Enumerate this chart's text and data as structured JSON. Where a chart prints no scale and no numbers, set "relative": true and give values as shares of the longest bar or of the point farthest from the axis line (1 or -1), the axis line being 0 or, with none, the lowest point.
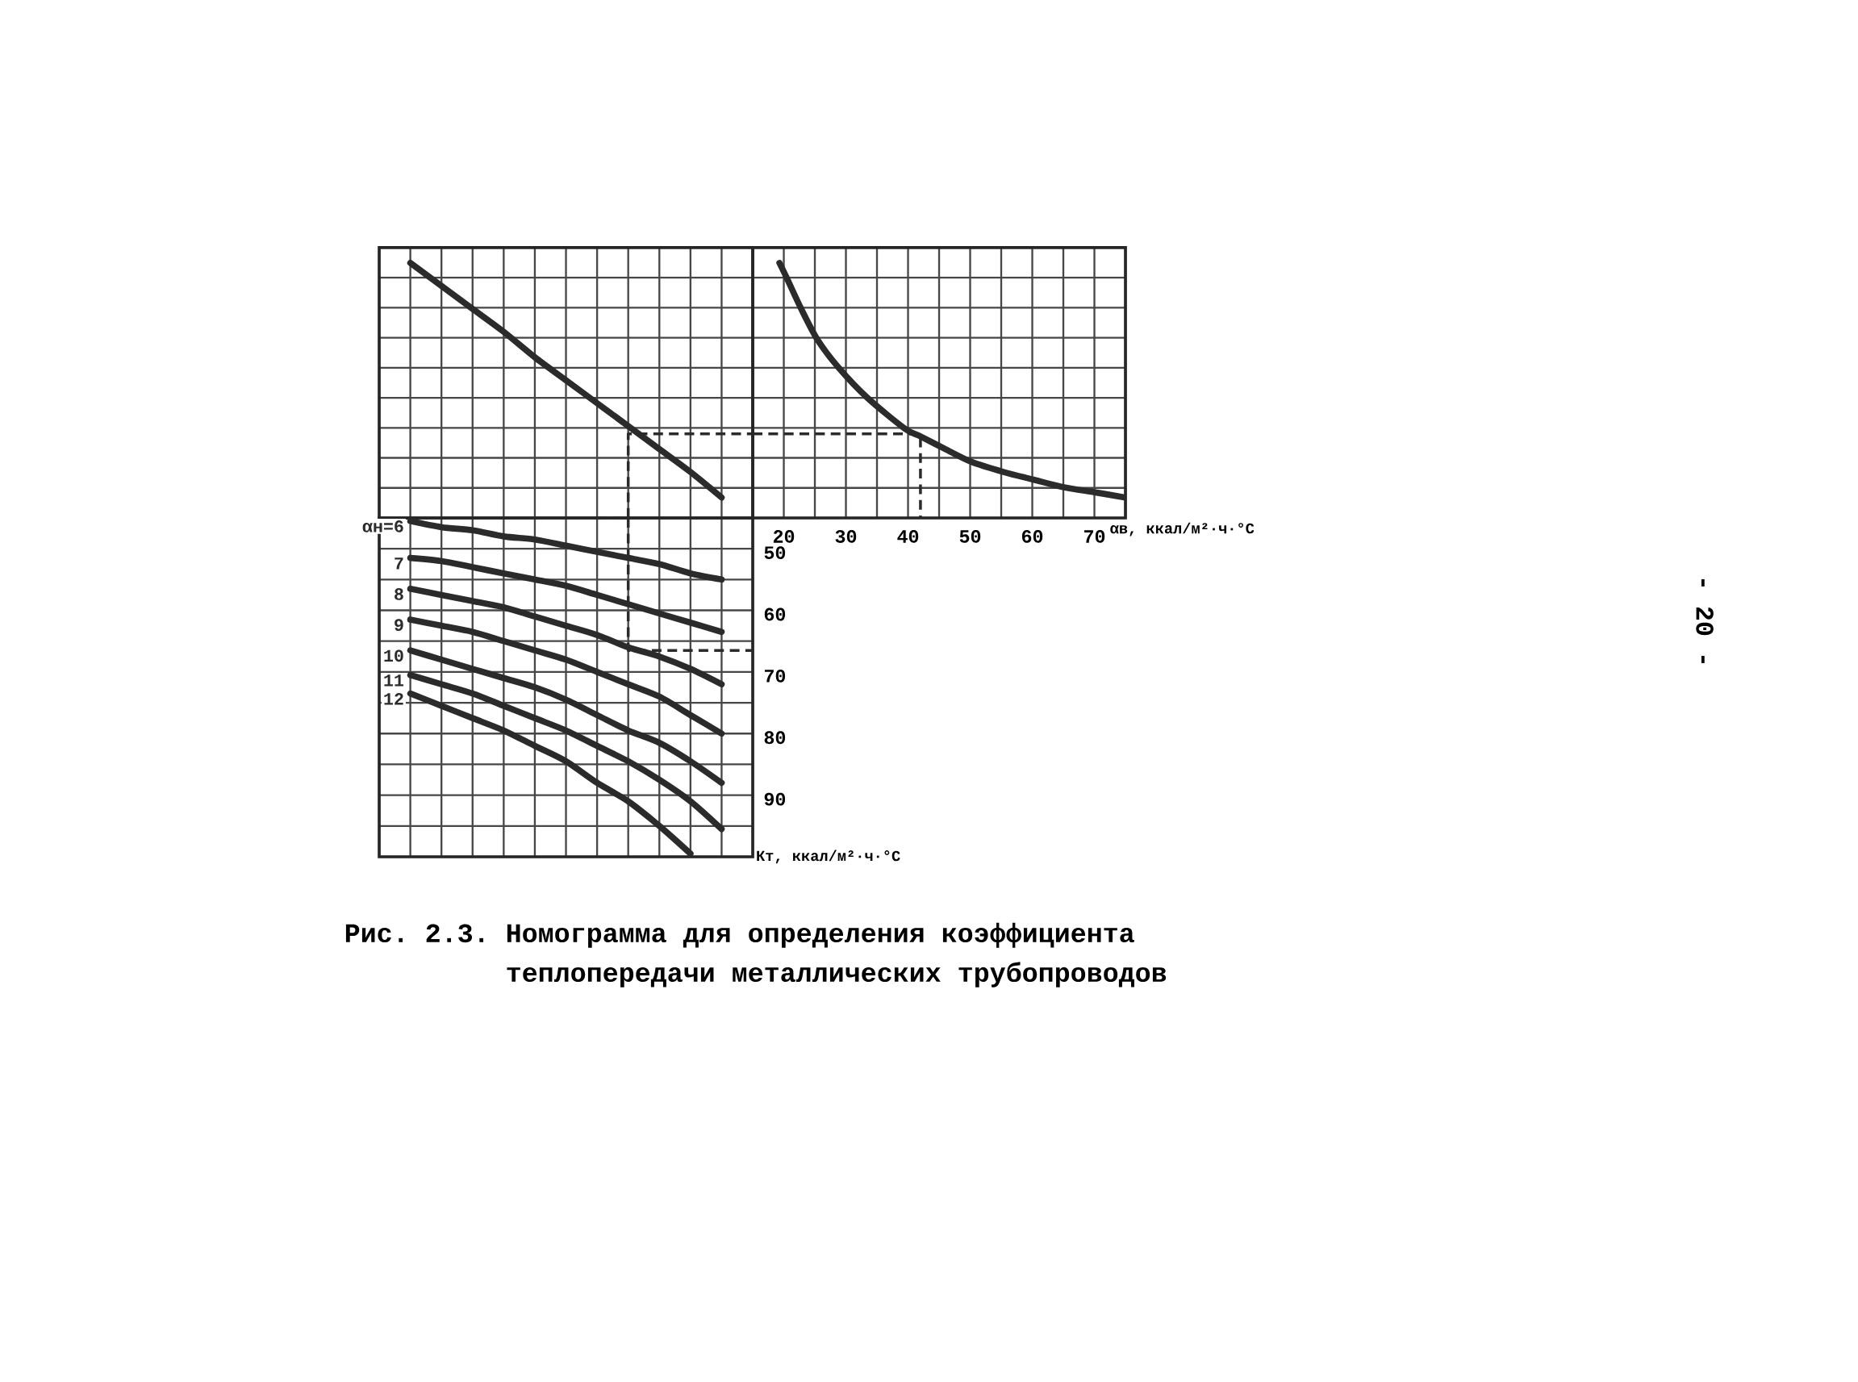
{
  "chart_data": [
    {
      "type": "line",
      "relative": true,
      "grid": true,
      "tick_labels": false,
      "title": "Рис. 2.3. Номограмма для определения коэффициента теплопередачи металлических трубопроводов",
      "annotations": [
        "- 20 -"
      ],
      "categories": [
        null,
        null,
        null,
        null,
        null,
        null,
        null,
        null,
        null,
        null,
        null,
        null,
        null
      ],
      "series": [
        {
          "color": "#2b2b2b",
          "values": [
            null,
            1,
            0.91,
            0.82,
            0.73,
            0.63,
            0.54,
            0.45,
            0.36,
            0.27,
            0.18,
            0.08,
            null
          ]
        },
        {
          "type": "step",
          "line_style": "dashed",
          "color": "#2b2b2b",
          "values": [
            null,
            null,
            null,
            null,
            null,
            null,
            null,
            0,
            0.33,
            0.33,
            0.33,
            0.33,
            0.33
          ]
        }
      ]
    },
    {
      "type": "line",
      "relative": true,
      "grid": true,
      "tick_labels": "x",
      "xlabel": "αв, ккал/м²·ч·°C",
      "xlim": [
        15,
        75
      ],
      "xticks": [
        {
          "value": 15,
          "label": null
        },
        20,
        {
          "value": 25,
          "label": null
        },
        30,
        {
          "value": 35,
          "label": null
        },
        40,
        {
          "value": 45,
          "label": null
        },
        50,
        {
          "value": 55,
          "label": null
        },
        60,
        {
          "value": 65,
          "label": null
        },
        70,
        {
          "value": 75,
          "label": null
        }
      ],
      "series": [
        {
          "color": "#2b2b2b",
          "x": [
            19.3,
            20.5,
            22.8,
            25.4,
            28.8,
            33.5,
            39.5,
            42,
            46,
            50.2,
            55.4,
            60.2,
            65.1,
            70.2,
            75
          ],
          "values": [
            1,
            0.94,
            0.82,
            0.7,
            0.59,
            0.47,
            0.35,
            0.32,
            0.27,
            0.22,
            0.18,
            0.15,
            0.12,
            0.1,
            0.08
          ]
        },
        {
          "type": "step",
          "line_style": "dashed",
          "color": "#2b2b2b",
          "x": [
            15,
            42
          ],
          "values": [
            0.33,
            0
          ]
        }
      ]
    },
    {
      "type": "line",
      "grid": true,
      "tick_labels": "y",
      "ylabel": "Кт, ккал/м²·ч·°C",
      "ylim": [
        100,
        45
      ],
      "yticks": [
        {
          "value": 45,
          "label": null
        },
        50,
        {
          "value": 55,
          "label": null
        },
        60,
        {
          "value": 65,
          "label": null
        },
        70,
        {
          "value": 75,
          "label": null
        },
        80,
        {
          "value": 85,
          "label": null
        },
        90,
        {
          "value": 95,
          "label": null
        },
        {
          "value": 100,
          "label": null
        }
      ],
      "categories": [
        null,
        null,
        null,
        null,
        null,
        null,
        null,
        null,
        null,
        null,
        null,
        null,
        null
      ],
      "series": [
        {
          "name": "αн=6",
          "color": "#2b2b2b",
          "values": [
            null,
            45.5,
            46.5,
            47,
            48,
            48.5,
            49.5,
            50.5,
            51.5,
            52.5,
            54,
            55,
            null
          ]
        },
        {
          "name": "7",
          "color": "#2b2b2b",
          "values": [
            null,
            51.5,
            52,
            53,
            54,
            55,
            56,
            57.5,
            59,
            60.5,
            62,
            63.5,
            null
          ]
        },
        {
          "name": "8",
          "color": "#2b2b2b",
          "values": [
            null,
            56.5,
            57.5,
            58.5,
            59.5,
            61,
            62.5,
            64,
            66,
            67.5,
            69.5,
            72,
            null
          ]
        },
        {
          "name": "9",
          "color": "#2b2b2b",
          "values": [
            null,
            61.5,
            62.5,
            63.5,
            65,
            66.5,
            68,
            70,
            72,
            74,
            77,
            80,
            null
          ]
        },
        {
          "name": "10",
          "color": "#2b2b2b",
          "values": [
            null,
            66.5,
            68,
            69.5,
            71,
            72.5,
            74.5,
            77,
            79.5,
            81.5,
            84.5,
            88,
            null
          ]
        },
        {
          "name": "11",
          "color": "#2b2b2b",
          "values": [
            null,
            70.5,
            72,
            73.5,
            75.5,
            77.5,
            79.5,
            82,
            84.5,
            87.5,
            91,
            95.5,
            null
          ]
        },
        {
          "name": "12",
          "color": "#2b2b2b",
          "values": [
            null,
            73.5,
            75.5,
            77.5,
            79.5,
            82,
            84.5,
            88,
            91,
            95,
            99.5,
            null,
            null
          ]
        },
        {
          "type": "step",
          "line_style": "dashed",
          "color": "#2b2b2b",
          "values": [
            null,
            null,
            null,
            null,
            null,
            null,
            null,
            45,
            66.5,
            66.5,
            66.5,
            66.5,
            66.5
          ]
        }
      ]
    }
  ]
}
